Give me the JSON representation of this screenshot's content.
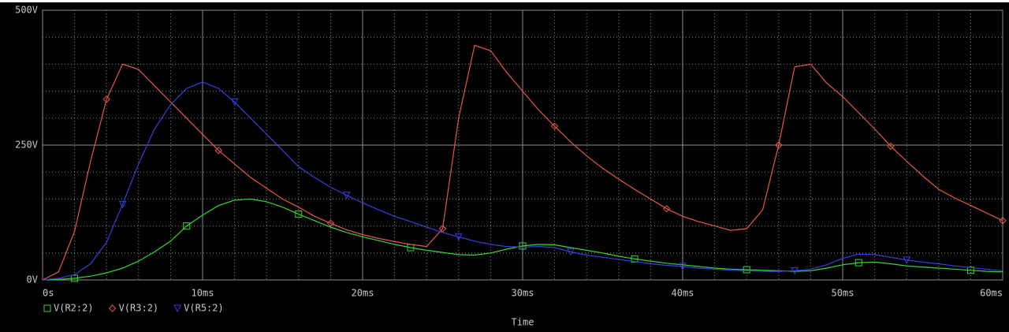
{
  "chart_data": {
    "type": "line",
    "xlabel": "Time",
    "x": [
      0,
      1,
      2,
      3,
      4,
      5,
      6,
      7,
      8,
      9,
      10,
      11,
      12,
      13,
      14,
      15,
      16,
      17,
      18,
      19,
      20,
      21,
      22,
      23,
      24,
      25,
      26,
      27,
      28,
      29,
      30,
      31,
      32,
      33,
      34,
      35,
      36,
      37,
      38,
      39,
      40,
      41,
      42,
      43,
      44,
      45,
      46,
      47,
      48,
      49,
      50,
      51,
      52,
      53,
      54,
      55,
      56,
      57,
      58,
      59,
      60
    ],
    "series": [
      {
        "name": "V(R2:2)",
        "color": "#33d633",
        "marker": "square",
        "values": [
          0,
          1,
          3,
          7,
          13,
          22,
          35,
          52,
          72,
          100,
          120,
          138,
          148,
          150,
          145,
          135,
          122,
          110,
          98,
          88,
          80,
          73,
          66,
          60,
          55,
          51,
          47,
          46,
          50,
          57,
          63,
          66,
          65,
          60,
          55,
          50,
          44,
          39,
          35,
          31,
          28,
          25,
          22,
          20,
          19,
          18,
          17,
          16,
          17,
          22,
          28,
          32,
          33,
          30,
          26,
          24,
          22,
          20,
          18,
          16,
          15
        ]
      },
      {
        "name": "V(R3:2)",
        "color": "#e5574b",
        "marker": "diamond",
        "values": [
          0,
          15,
          90,
          220,
          335,
          400,
          390,
          360,
          330,
          300,
          270,
          240,
          215,
          190,
          170,
          150,
          135,
          118,
          105,
          93,
          84,
          77,
          71,
          66,
          62,
          95,
          300,
          435,
          425,
          385,
          350,
          315,
          285,
          256,
          230,
          207,
          187,
          168,
          150,
          132,
          118,
          108,
          100,
          92,
          95,
          130,
          250,
          395,
          400,
          365,
          340,
          310,
          280,
          248,
          220,
          193,
          168,
          152,
          138,
          124,
          110
        ]
      },
      {
        "name": "V(R5:2)",
        "color": "#3c3ce0",
        "marker": "triangle",
        "values": [
          0,
          3,
          10,
          30,
          70,
          140,
          215,
          280,
          325,
          355,
          367,
          355,
          330,
          300,
          270,
          240,
          210,
          190,
          172,
          157,
          143,
          130,
          118,
          108,
          98,
          88,
          80,
          72,
          66,
          62,
          61,
          62,
          60,
          52,
          46,
          42,
          38,
          34,
          30,
          27,
          25,
          22,
          20,
          18,
          17,
          16,
          16,
          17,
          20,
          28,
          40,
          48,
          47,
          42,
          37,
          33,
          30,
          26,
          23,
          20,
          17
        ]
      }
    ],
    "xlim": [
      0,
      60
    ],
    "ylim": [
      0,
      500
    ],
    "xticks": [
      {
        "value": 0,
        "label": "0s"
      },
      {
        "value": 10,
        "label": "10ms"
      },
      {
        "value": 20,
        "label": "20ms"
      },
      {
        "value": 30,
        "label": "30ms"
      },
      {
        "value": 40,
        "label": "40ms"
      },
      {
        "value": 50,
        "label": "50ms"
      },
      {
        "value": 60,
        "label": "60ms"
      }
    ],
    "yticks": [
      {
        "value": 0,
        "label": "0V"
      },
      {
        "value": 250,
        "label": "250V"
      },
      {
        "value": 500,
        "label": "500V"
      }
    ],
    "xminorticks": [
      2,
      4,
      6,
      8,
      12,
      14,
      16,
      18,
      22,
      24,
      26,
      28,
      32,
      34,
      36,
      38,
      42,
      44,
      46,
      48,
      52,
      54,
      56,
      58
    ],
    "yminorticks": [
      50,
      100,
      150,
      200,
      300,
      350,
      400,
      450
    ],
    "grid": true
  }
}
